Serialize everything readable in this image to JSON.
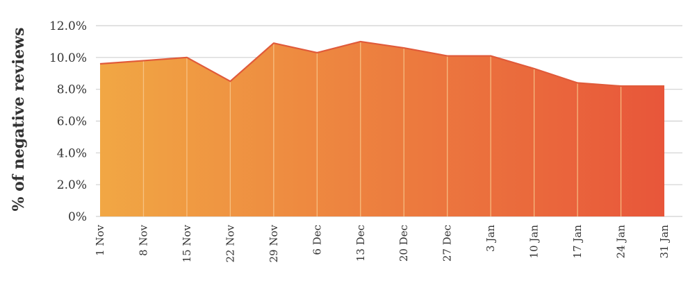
{
  "chart_data": {
    "type": "area",
    "ylabel": "% of negative reviews",
    "x": [
      "1 Nov",
      "8 Nov",
      "15 Nov",
      "22 Nov",
      "29 Nov",
      "6 Dec",
      "13 Dec",
      "20 Dec",
      "27 Dec",
      "3 Jan",
      "10 Jan",
      "17 Jan",
      "24 Jan",
      "31 Jan"
    ],
    "values": [
      9.6,
      9.8,
      10.0,
      8.5,
      10.9,
      10.3,
      11.0,
      10.6,
      10.1,
      10.1,
      9.3,
      8.4,
      8.2,
      8.2
    ],
    "ylim": [
      0,
      12
    ],
    "yticks": [
      0,
      2,
      4,
      6,
      8,
      10,
      12
    ],
    "ytick_labels": [
      "0%",
      "2.0%",
      "4.0%",
      "6.0%",
      "8.0%",
      "10.0%",
      "12.0%"
    ],
    "grid": true,
    "colors": {
      "gradient_start": "#F1A744",
      "gradient_end": "#E8563A",
      "line": "#E05A3A",
      "grid": "#D0D0D0",
      "separator": "#F8C88C"
    }
  }
}
